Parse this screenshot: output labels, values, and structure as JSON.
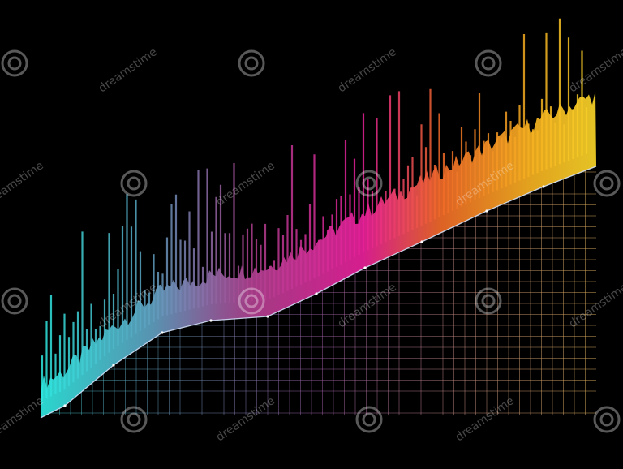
{
  "watermark": {
    "text": "dreamstime"
  }
}
